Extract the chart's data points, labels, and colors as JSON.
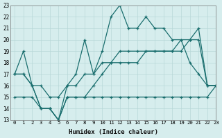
{
  "title": "",
  "xlabel": "Humidex (Indice chaleur)",
  "ylabel": "",
  "xlim": [
    -0.5,
    23
  ],
  "ylim": [
    13,
    23
  ],
  "yticks": [
    13,
    14,
    15,
    16,
    17,
    18,
    19,
    20,
    21,
    22,
    23
  ],
  "xticks": [
    0,
    1,
    2,
    3,
    4,
    5,
    6,
    7,
    8,
    9,
    10,
    11,
    12,
    13,
    14,
    15,
    16,
    17,
    18,
    19,
    20,
    21,
    22,
    23
  ],
  "background_color": "#d6eded",
  "grid_color": "#b8d8d8",
  "line_color": "#1a6e6e",
  "lines": [
    {
      "x": [
        0,
        1,
        2,
        3,
        4,
        5,
        6,
        7,
        8,
        9,
        10,
        11,
        12,
        13,
        14,
        15,
        16,
        17,
        18,
        19,
        20,
        21,
        22,
        23
      ],
      "y": [
        17,
        19,
        16,
        14,
        14,
        13,
        16,
        17,
        20,
        17,
        19,
        22,
        23,
        21,
        21,
        22,
        21,
        21,
        20,
        20,
        18,
        17,
        16,
        16
      ]
    },
    {
      "x": [
        0,
        1,
        2,
        3,
        4,
        5,
        6,
        7,
        8,
        9,
        10,
        11,
        12,
        13,
        14,
        15,
        16,
        17,
        18,
        19,
        20,
        21,
        22,
        23
      ],
      "y": [
        17,
        17,
        16,
        14,
        14,
        13,
        15,
        15,
        15,
        16,
        17,
        18,
        19,
        19,
        19,
        19,
        19,
        19,
        19,
        19,
        20,
        21,
        16,
        16
      ]
    },
    {
      "x": [
        0,
        1,
        2,
        3,
        4,
        5,
        6,
        7,
        8,
        9,
        10,
        11,
        12,
        13,
        14,
        15,
        16,
        17,
        18,
        19,
        20,
        21,
        22,
        23
      ],
      "y": [
        15,
        15,
        15,
        14,
        14,
        13,
        15,
        15,
        15,
        15,
        15,
        15,
        15,
        15,
        15,
        15,
        15,
        15,
        15,
        15,
        15,
        15,
        15,
        16
      ]
    },
    {
      "x": [
        0,
        1,
        2,
        3,
        4,
        5,
        6,
        7,
        8,
        9,
        10,
        11,
        12,
        13,
        14,
        15,
        16,
        17,
        18,
        19,
        20,
        21,
        22,
        23
      ],
      "y": [
        17,
        17,
        16,
        16,
        15,
        15,
        16,
        16,
        17,
        17,
        18,
        18,
        18,
        18,
        18,
        19,
        19,
        19,
        19,
        20,
        20,
        20,
        16,
        16
      ]
    }
  ]
}
